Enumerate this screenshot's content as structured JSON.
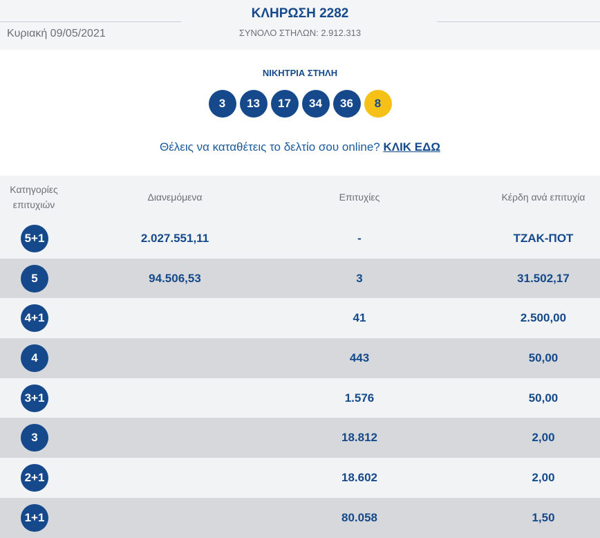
{
  "header": {
    "date": "Κυριακή 09/05/2021",
    "title": "ΚΛΗΡΩΣΗ 2282",
    "subtitle": "ΣΥΝΟΛΟ ΣΤΗΛΩΝ: 2.912.313"
  },
  "winning": {
    "label": "ΝΙΚΗΤΡΙΑ ΣΤΗΛΗ",
    "numbers": [
      "3",
      "13",
      "17",
      "34",
      "36"
    ],
    "joker": "8"
  },
  "promo": {
    "text": "Θέλεις να καταθέτεις το δελτίο σου online?",
    "link": "ΚΛΙΚ ΕΔΩ"
  },
  "table": {
    "headers": {
      "category": "Κατηγορίες επιτυχιών",
      "distributed": "Διανεμόμενα",
      "wins": "Επιτυχίες",
      "prize": "Κέρδη ανά επιτυχία"
    },
    "rows": [
      {
        "category": "5+1",
        "distributed": "2.027.551,11",
        "wins": "-",
        "prize": "ΤΖΑΚ-ΠΟΤ"
      },
      {
        "category": "5",
        "distributed": "94.506,53",
        "wins": "3",
        "prize": "31.502,17"
      },
      {
        "category": "4+1",
        "distributed": "",
        "wins": "41",
        "prize": "2.500,00"
      },
      {
        "category": "4",
        "distributed": "",
        "wins": "443",
        "prize": "50,00"
      },
      {
        "category": "3+1",
        "distributed": "",
        "wins": "1.576",
        "prize": "50,00"
      },
      {
        "category": "3",
        "distributed": "",
        "wins": "18.812",
        "prize": "2,00"
      },
      {
        "category": "2+1",
        "distributed": "",
        "wins": "18.602",
        "prize": "2,00"
      },
      {
        "category": "1+1",
        "distributed": "",
        "wins": "80.058",
        "prize": "1,50"
      }
    ]
  },
  "colors": {
    "brand_blue": "#15498c",
    "joker_yellow": "#f6c117",
    "row_light": "#f2f3f5",
    "row_dark": "#d7d8db"
  }
}
